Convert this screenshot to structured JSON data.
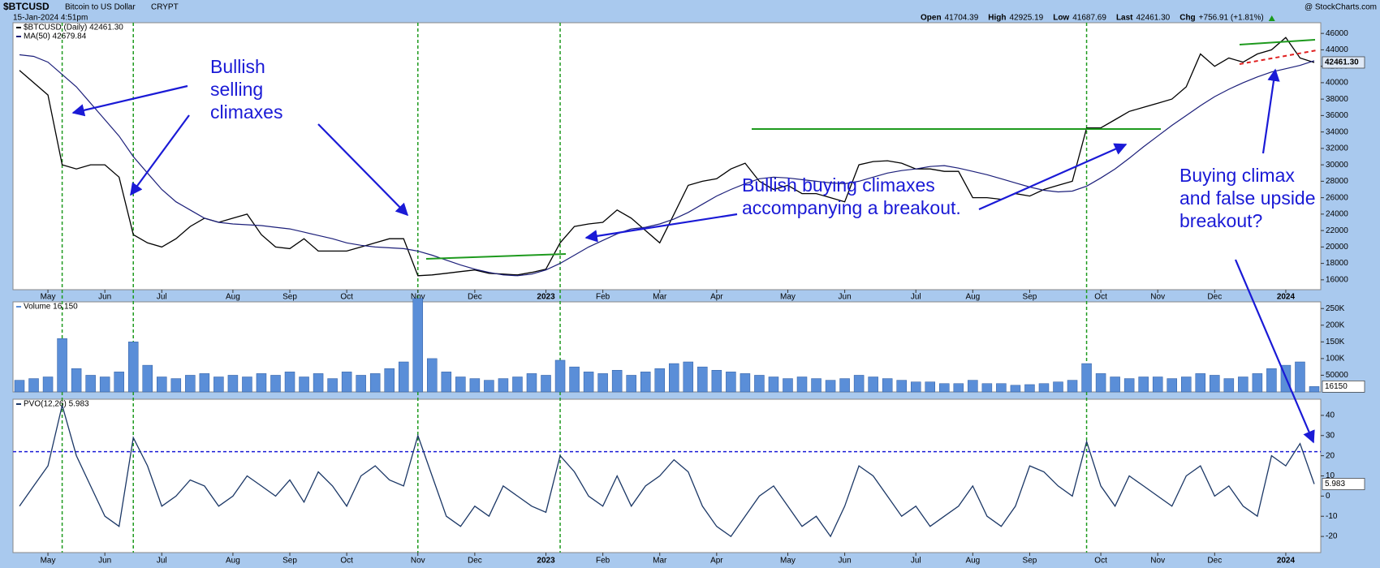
{
  "header": {
    "symbol": "$BTCUSD",
    "name": "Bitcoin to US Dollar",
    "exchange": "CRYPT",
    "datetime": "15-Jan-2024 4:51pm",
    "source": "@ StockCharts.com",
    "quote": [
      [
        "Open",
        "41704.39"
      ],
      [
        "High",
        "42925.19"
      ],
      [
        "Low",
        "41687.69"
      ],
      [
        "Last",
        "42461.30"
      ],
      [
        "Chg",
        "+756.91 (+1.81%)"
      ]
    ]
  },
  "chart_data": [
    {
      "type": "line",
      "categories": [
        null,
        null,
        "May",
        null,
        null,
        null,
        "Jun",
        null,
        null,
        null,
        "Jul",
        null,
        null,
        null,
        null,
        "Aug",
        null,
        null,
        null,
        "Sep",
        null,
        null,
        null,
        "Oct",
        null,
        null,
        null,
        null,
        "Nov",
        null,
        null,
        null,
        "Dec",
        null,
        null,
        null,
        null,
        "2023",
        null,
        null,
        null,
        "Feb",
        null,
        null,
        null,
        "Mar",
        null,
        null,
        null,
        "Apr",
        null,
        null,
        null,
        null,
        "May",
        null,
        null,
        null,
        "Jun",
        null,
        null,
        null,
        null,
        "Jul",
        null,
        null,
        null,
        "Aug",
        null,
        null,
        null,
        "Sep",
        null,
        null,
        null,
        null,
        "Oct",
        null,
        null,
        null,
        "Nov",
        null,
        null,
        null,
        "Dec",
        null,
        null,
        null,
        null,
        "2024",
        null,
        null
      ],
      "series": [
        {
          "name": "$BTCUSD (Daily) 42461.30",
          "color": "#000000",
          "values": [
            41500,
            40000,
            38500,
            30000,
            29500,
            30000,
            30000,
            28500,
            21500,
            20500,
            20000,
            21000,
            22500,
            23500,
            23000,
            23500,
            24000,
            21500,
            20000,
            19800,
            21000,
            19500,
            19500,
            19500,
            20000,
            20500,
            21000,
            21000,
            16500,
            16600,
            16800,
            17000,
            17200,
            16800,
            16700,
            16600,
            16900,
            17300,
            20500,
            22500,
            22800,
            23000,
            24500,
            23500,
            22000,
            20500,
            24000,
            27500,
            28000,
            28300,
            29500,
            30200,
            28000,
            27000,
            27500,
            26500,
            26500,
            26000,
            25500,
            30000,
            30400,
            30500,
            30200,
            29500,
            29500,
            29200,
            29200,
            26000,
            26000,
            25800,
            26500,
            26200,
            27000,
            27500,
            28000,
            34500,
            34500,
            35500,
            36500,
            37000,
            37500,
            38000,
            39500,
            43500,
            42000,
            43000,
            42500,
            43500,
            44000,
            45500,
            43000,
            42461.3
          ],
          "value_labels": [
            null,
            null,
            null,
            null,
            null,
            null,
            null,
            null,
            null,
            null,
            null,
            null,
            null,
            null,
            null,
            null,
            null,
            null,
            null,
            null,
            null,
            null,
            null,
            null,
            null,
            null,
            null,
            null,
            null,
            null,
            null,
            null,
            null,
            null,
            null,
            null,
            null,
            null,
            null,
            null,
            null,
            null,
            null,
            null,
            null,
            null,
            null,
            null,
            null,
            null,
            null,
            null,
            null,
            null,
            null,
            null,
            null,
            null,
            null,
            null,
            null,
            null,
            null,
            null,
            null,
            null,
            null,
            null,
            null,
            null,
            null,
            null,
            null,
            null,
            null,
            null,
            null,
            null,
            null,
            null,
            null,
            null,
            null,
            null,
            null,
            null,
            null,
            null,
            null,
            null,
            null,
            "42461.30"
          ]
        },
        {
          "name": "MA(50) 42679.84",
          "color": "#1c1f7a",
          "values": [
            43400,
            43200,
            42500,
            41000,
            39500,
            37500,
            35500,
            33500,
            31000,
            29000,
            27000,
            25500,
            24500,
            23500,
            23000,
            22800,
            22700,
            22600,
            22400,
            22200,
            21800,
            21400,
            21000,
            20500,
            20200,
            20000,
            19900,
            19800,
            19500,
            19000,
            18400,
            17800,
            17300,
            16900,
            16600,
            16500,
            16700,
            17200,
            18000,
            19000,
            20000,
            20800,
            21600,
            22200,
            22400,
            22800,
            23400,
            24200,
            25200,
            26200,
            27000,
            27700,
            28300,
            28500,
            28400,
            28200,
            28000,
            27800,
            27700,
            28000,
            28500,
            29000,
            29300,
            29500,
            29800,
            29900,
            29600,
            29200,
            28800,
            28300,
            27800,
            27300,
            26900,
            26700,
            26800,
            27400,
            28400,
            29500,
            30800,
            32200,
            33500,
            34800,
            36000,
            37200,
            38300,
            39200,
            40000,
            40700,
            41300,
            41700,
            42100,
            42679.84
          ]
        }
      ],
      "ylim": [
        14800,
        47300
      ],
      "yticks": [
        16000,
        18000,
        20000,
        22000,
        24000,
        26000,
        28000,
        30000,
        32000,
        34000,
        36000,
        38000,
        40000,
        42000,
        44000,
        46000
      ],
      "grid": false,
      "annotations": [
        [
          "Bullish",
          "selling",
          "climaxes"
        ],
        [
          "Bullish buying climaxes",
          "accompanying a breakout."
        ],
        [
          "Buying climax",
          "and false upside",
          "breakout?"
        ]
      ]
    },
    {
      "type": "bar",
      "series": [
        {
          "name": "Volume 16,150",
          "color": "#5a8ed8",
          "values": [
            35000,
            40000,
            45000,
            160000,
            70000,
            50000,
            45000,
            60000,
            150000,
            80000,
            45000,
            40000,
            50000,
            55000,
            45000,
            50000,
            45000,
            55000,
            50000,
            60000,
            45000,
            55000,
            40000,
            60000,
            50000,
            55000,
            70000,
            90000,
            280000,
            100000,
            60000,
            45000,
            40000,
            35000,
            40000,
            45000,
            55000,
            50000,
            95000,
            75000,
            60000,
            55000,
            65000,
            50000,
            60000,
            70000,
            85000,
            90000,
            75000,
            65000,
            60000,
            55000,
            50000,
            45000,
            40000,
            45000,
            40000,
            35000,
            40000,
            50000,
            45000,
            40000,
            35000,
            30000,
            30000,
            25000,
            25000,
            35000,
            25000,
            25000,
            20000,
            22000,
            25000,
            30000,
            35000,
            85000,
            55000,
            45000,
            40000,
            45000,
            45000,
            40000,
            45000,
            55000,
            50000,
            40000,
            45000,
            55000,
            70000,
            80000,
            90000,
            16150
          ]
        }
      ],
      "ylim": [
        0,
        270000
      ],
      "yticks": [
        50000,
        {
          "value": 100000,
          "label": "100K"
        },
        {
          "value": 150000,
          "label": "150K"
        },
        {
          "value": 200000,
          "label": "200K"
        },
        {
          "value": 250000,
          "label": "250K"
        }
      ],
      "grid": false
    },
    {
      "type": "line",
      "categories": [
        null,
        null,
        "May",
        null,
        null,
        null,
        "Jun",
        null,
        null,
        null,
        "Jul",
        null,
        null,
        null,
        null,
        "Aug",
        null,
        null,
        null,
        "Sep",
        null,
        null,
        null,
        "Oct",
        null,
        null,
        null,
        null,
        "Nov",
        null,
        null,
        null,
        "Dec",
        null,
        null,
        null,
        null,
        "2023",
        null,
        null,
        null,
        "Feb",
        null,
        null,
        null,
        "Mar",
        null,
        null,
        null,
        "Apr",
        null,
        null,
        null,
        null,
        "May",
        null,
        null,
        null,
        "Jun",
        null,
        null,
        null,
        null,
        "Jul",
        null,
        null,
        null,
        "Aug",
        null,
        null,
        null,
        "Sep",
        null,
        null,
        null,
        null,
        "Oct",
        null,
        null,
        null,
        "Nov",
        null,
        null,
        null,
        "Dec",
        null,
        null,
        null,
        null,
        "2024",
        null,
        null
      ],
      "series": [
        {
          "name": "PVO(12,26) 5.983",
          "color": "#1b3766",
          "values": [
            -5,
            5,
            15,
            45,
            20,
            5,
            -10,
            -15,
            29,
            15,
            -5,
            0,
            8,
            5,
            -5,
            0,
            10,
            5,
            0,
            8,
            -3,
            12,
            5,
            -5,
            10,
            15,
            8,
            5,
            30,
            10,
            -10,
            -15,
            -5,
            -10,
            5,
            0,
            -5,
            -8,
            20,
            12,
            0,
            -5,
            10,
            -5,
            5,
            10,
            18,
            12,
            -5,
            -15,
            -20,
            -10,
            0,
            5,
            -5,
            -15,
            -10,
            -20,
            -5,
            15,
            10,
            0,
            -10,
            -5,
            -15,
            -10,
            -5,
            5,
            -10,
            -15,
            -5,
            15,
            12,
            5,
            0,
            27,
            5,
            -5,
            10,
            5,
            0,
            -5,
            10,
            15,
            0,
            5,
            -5,
            -10,
            20,
            15,
            26,
            5.983
          ]
        }
      ],
      "ylim": [
        -28,
        48
      ],
      "yticks": [
        -20,
        -10,
        0,
        10,
        20,
        30,
        40
      ],
      "grid": false,
      "reference_line": 22
    }
  ]
}
